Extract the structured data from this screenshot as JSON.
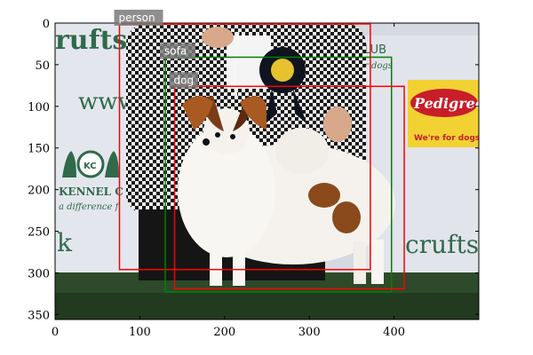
{
  "figure": {
    "image_description_visible_text": {
      "left_banner_top": "rufts",
      "left_banner_www": "www.",
      "left_banner_kennel": "KENNEL C",
      "left_banner_tagline": "a difference f",
      "left_banner_k": "k",
      "kc_logo_text": "KC",
      "right_banner_lub": "LUB",
      "right_banner_dogs": "r dogs",
      "pedigree_brand": "Pedigree",
      "pedigree_tagline": "We're for dogs",
      "right_banner_crufts": "crufts"
    },
    "axes": {
      "x_ticks": [
        "0",
        "100",
        "200",
        "300",
        "400"
      ],
      "x_tick_values": [
        0,
        100,
        200,
        300,
        400
      ],
      "y_ticks": [
        "0",
        "50",
        "100",
        "150",
        "200",
        "250",
        "300",
        "350"
      ],
      "y_tick_values": [
        0,
        50,
        100,
        150,
        200,
        250,
        300,
        350
      ],
      "xlim": [
        0,
        500
      ],
      "ylim": [
        356,
        0
      ]
    },
    "detections": [
      {
        "label": "person",
        "color": "#ff0000",
        "x1": 76,
        "y1": 1,
        "x2": 372,
        "y2": 296
      },
      {
        "label": "sofa",
        "color": "#008000",
        "x1": 130,
        "y1": 41,
        "x2": 397,
        "y2": 323
      },
      {
        "label": "dog",
        "color": "#ff0000",
        "x1": 141,
        "y1": 76,
        "x2": 412,
        "y2": 319
      }
    ],
    "colors": {
      "label_background": "#7a7a7a",
      "axis": "#000000"
    }
  }
}
